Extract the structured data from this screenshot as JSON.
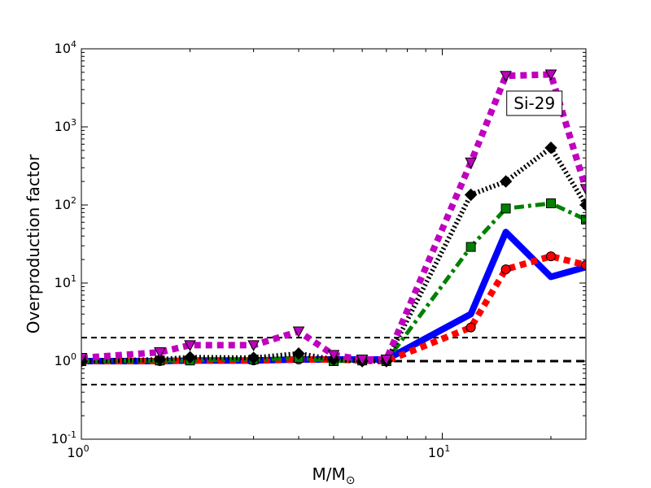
{
  "chart_data": {
    "type": "line",
    "title": "",
    "xlabel": "M/M",
    "xlabel_sub": "⊙",
    "ylabel": "Overproduction factor",
    "xscale": "log",
    "yscale": "log",
    "xlim": [
      1,
      25
    ],
    "ylim": [
      0.1,
      10000
    ],
    "grid": false,
    "legend": "none",
    "x_ticks": [
      {
        "value": 1,
        "base": "10",
        "exp": "0"
      },
      {
        "value": 10,
        "base": "10",
        "exp": "1"
      }
    ],
    "y_ticks": [
      {
        "value": 0.1,
        "base": "10",
        "exp": "-1"
      },
      {
        "value": 1,
        "base": "10",
        "exp": "0"
      },
      {
        "value": 10,
        "base": "10",
        "exp": "1"
      },
      {
        "value": 100,
        "base": "10",
        "exp": "2"
      },
      {
        "value": 1000,
        "base": "10",
        "exp": "3"
      },
      {
        "value": 10000,
        "base": "10",
        "exp": "4"
      }
    ],
    "annotation": {
      "text": "Si-29",
      "x": 18,
      "y": 1400
    },
    "reference_lines": [
      {
        "y": 2.0,
        "color": "#000000",
        "style": "dashed"
      },
      {
        "y": 1.0,
        "color": "#000000",
        "style": "dashed-bold"
      },
      {
        "y": 0.5,
        "color": "#000000",
        "style": "dashed"
      }
    ],
    "series": [
      {
        "color": "#0000ff",
        "style": "solid",
        "marker": "none",
        "x": [
          1,
          1.65,
          2,
          3,
          4,
          5,
          6,
          7,
          12,
          15,
          20,
          25
        ],
        "y": [
          1.0,
          1.0,
          1.02,
          1.02,
          1.05,
          1.05,
          1.05,
          1.05,
          4.0,
          45,
          12,
          16
        ]
      },
      {
        "color": "#ff0000",
        "style": "dotted",
        "marker": "circle",
        "x": [
          1,
          1.65,
          2,
          3,
          4,
          5,
          6,
          7,
          12,
          15,
          20,
          25
        ],
        "y": [
          1.0,
          1.0,
          1.02,
          1.02,
          1.05,
          1.05,
          1.02,
          1.0,
          2.7,
          15,
          22,
          17
        ]
      },
      {
        "color": "#008000",
        "style": "dashdot",
        "marker": "square",
        "x": [
          1,
          1.65,
          2,
          3,
          4,
          5,
          6,
          7,
          12,
          15,
          20,
          25
        ],
        "y": [
          1.0,
          1.02,
          1.02,
          1.05,
          1.1,
          1.0,
          1.02,
          1.0,
          29,
          90,
          105,
          65
        ]
      },
      {
        "color": "#000000",
        "style": "dotted-fine",
        "marker": "diamond",
        "x": [
          1,
          1.65,
          2,
          3,
          4,
          5,
          6,
          7,
          12,
          15,
          20,
          25
        ],
        "y": [
          1.0,
          1.05,
          1.12,
          1.1,
          1.25,
          1.05,
          1.0,
          1.0,
          135,
          200,
          540,
          100
        ]
      },
      {
        "color": "#bf00bf",
        "style": "dotted",
        "marker": "triangle-down",
        "x": [
          1,
          1.65,
          2,
          3,
          4,
          5,
          6,
          7,
          12,
          15,
          20,
          25
        ],
        "y": [
          1.1,
          1.3,
          1.6,
          1.6,
          2.4,
          1.2,
          1.05,
          1.05,
          350,
          4500,
          4700,
          160
        ]
      }
    ]
  }
}
